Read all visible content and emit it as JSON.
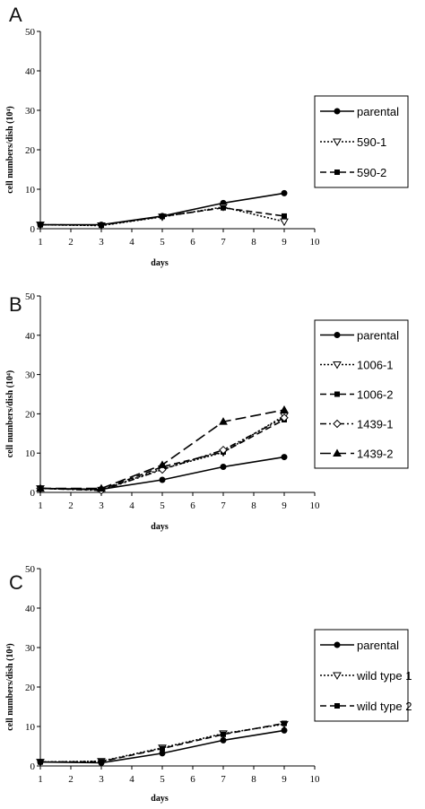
{
  "chart_data": [
    {
      "type": "line",
      "panel": "A",
      "xlabel": "days",
      "ylabel": "cell numbers/dish (10⁴)",
      "xlim": [
        1,
        10
      ],
      "ylim": [
        0,
        50
      ],
      "xticks": [
        1,
        2,
        3,
        4,
        5,
        6,
        7,
        8,
        9,
        10
      ],
      "yticks": [
        0,
        10,
        20,
        30,
        40,
        50
      ],
      "grid": false,
      "legend_position": "right",
      "series": [
        {
          "name": "parental",
          "marker": "circle",
          "dash": "solid",
          "x": [
            1,
            3,
            5,
            7,
            9
          ],
          "y": [
            1,
            1,
            3.2,
            6.5,
            9
          ]
        },
        {
          "name": "590-1",
          "marker": "triangle-down-open",
          "dash": "dotted",
          "x": [
            1,
            3,
            5,
            7,
            9
          ],
          "y": [
            1,
            0.8,
            3,
            5.5,
            1.8
          ]
        },
        {
          "name": "590-2",
          "marker": "square",
          "dash": "dashed",
          "x": [
            1,
            3,
            5,
            7,
            9
          ],
          "y": [
            1,
            0.9,
            3.1,
            5.3,
            3.2
          ]
        }
      ]
    },
    {
      "type": "line",
      "panel": "B",
      "xlabel": "days",
      "ylabel": "cell numbers/dish (10⁴)",
      "xlim": [
        1,
        10
      ],
      "ylim": [
        0,
        50
      ],
      "xticks": [
        1,
        2,
        3,
        4,
        5,
        6,
        7,
        8,
        9,
        10
      ],
      "yticks": [
        0,
        10,
        20,
        30,
        40,
        50
      ],
      "grid": false,
      "legend_position": "right",
      "series": [
        {
          "name": "parental",
          "marker": "circle",
          "dash": "solid",
          "x": [
            1,
            3,
            5,
            7,
            9
          ],
          "y": [
            1,
            0.8,
            3.2,
            6.5,
            9
          ]
        },
        {
          "name": "1006-1",
          "marker": "triangle-down-open",
          "dash": "dotted",
          "x": [
            1,
            3,
            5,
            7,
            9
          ],
          "y": [
            1,
            0.6,
            6,
            10.2,
            19.5
          ]
        },
        {
          "name": "1006-2",
          "marker": "square",
          "dash": "dashed",
          "x": [
            1,
            3,
            5,
            7,
            9
          ],
          "y": [
            1,
            0.7,
            6.5,
            10.3,
            18.5
          ]
        },
        {
          "name": "1439-1",
          "marker": "diamond-open",
          "dash": "dashdotdot",
          "x": [
            1,
            3,
            5,
            7,
            9
          ],
          "y": [
            1,
            0.5,
            5.8,
            10.8,
            19
          ]
        },
        {
          "name": "1439-2",
          "marker": "triangle-up",
          "dash": "longdash",
          "x": [
            1,
            3,
            5,
            7,
            9
          ],
          "y": [
            1,
            1,
            7,
            18,
            21
          ]
        }
      ]
    },
    {
      "type": "line",
      "panel": "C",
      "xlabel": "days",
      "ylabel": "cell numbers/dish (10⁴)",
      "xlim": [
        1,
        10
      ],
      "ylim": [
        0,
        50
      ],
      "xticks": [
        1,
        2,
        3,
        4,
        5,
        6,
        7,
        8,
        9,
        10
      ],
      "yticks": [
        0,
        10,
        20,
        30,
        40,
        50
      ],
      "grid": false,
      "legend_position": "right",
      "series": [
        {
          "name": "parental",
          "marker": "circle",
          "dash": "solid",
          "x": [
            1,
            3,
            5,
            7,
            9
          ],
          "y": [
            1,
            0.8,
            3.2,
            6.5,
            9
          ]
        },
        {
          "name": "wild type 1",
          "marker": "triangle-down-open",
          "dash": "dotted",
          "x": [
            1,
            3,
            5,
            7,
            9
          ],
          "y": [
            1,
            1.2,
            4.6,
            8.2,
            10.6
          ]
        },
        {
          "name": "wild type 2",
          "marker": "square",
          "dash": "dashed",
          "x": [
            1,
            3,
            5,
            7,
            9
          ],
          "y": [
            1,
            1.1,
            4.4,
            8,
            10.8
          ]
        }
      ]
    }
  ]
}
